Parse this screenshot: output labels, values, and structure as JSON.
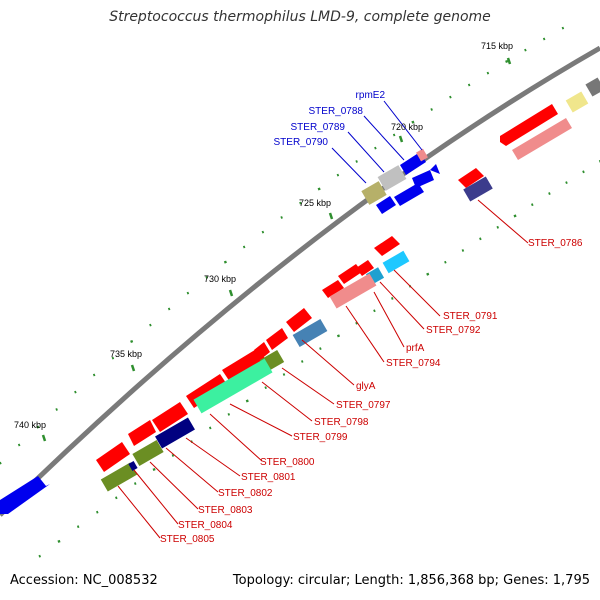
{
  "title": "Streptococcus thermophilus LMD-9, complete genome",
  "accession_text": "Accession: NC_008532",
  "summary_text": "Topology: circular; Length: 1,856,368 bp; Genes: 1,795",
  "colors": {
    "backbone": "#7a7a7a",
    "forward_cds": "#ff0000",
    "forward_cds_light": "#f08c8c",
    "label_reverse": "#0000cc",
    "label_forward": "#cc0000",
    "tick": "#2f8f2f"
  },
  "scale_labels": [
    "715 kbp",
    "720 kbp",
    "725 kbp",
    "730 kbp",
    "735 kbp",
    "740 kbp"
  ],
  "gene_labels_upper": [
    "rpmE2",
    "STER_0788",
    "STER_0789",
    "STER_0790"
  ],
  "gene_labels_lower": [
    "STER_0786",
    "STER_0791",
    "STER_0792",
    "prfA",
    "STER_0794",
    "glyA",
    "STER_0797",
    "STER_0798",
    "STER_0799",
    "STER_0800",
    "STER_0801",
    "STER_0802",
    "STER_0803",
    "STER_0804",
    "STER_0805"
  ]
}
